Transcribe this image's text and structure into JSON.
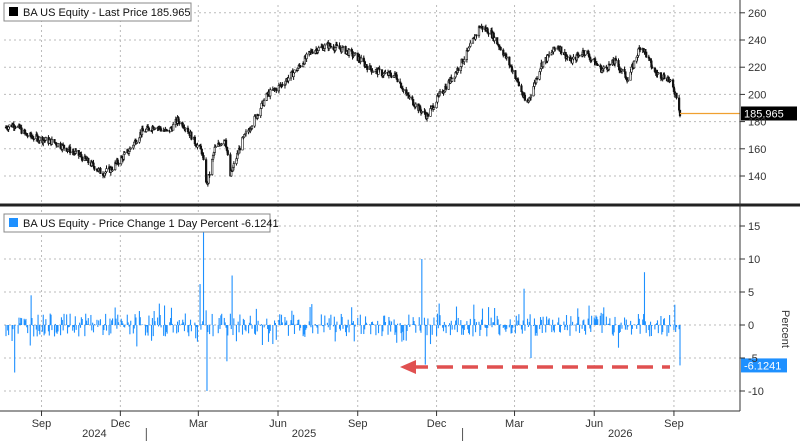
{
  "chart_data": [
    {
      "type": "candlestick",
      "legend": "BA US Equity - Last Price 185.965",
      "last_value_label": "185.965",
      "ylim": [
        118,
        265
      ],
      "yticks": [
        140,
        160,
        180,
        200,
        220,
        240,
        260
      ],
      "colors": {
        "price": "#111111",
        "last_line": "#f0a030",
        "label_bg": "#000000"
      },
      "anchor_points": [
        [
          "2024-07-22",
          176
        ],
        [
          "2024-08-01",
          178
        ],
        [
          "2024-08-15",
          170
        ],
        [
          "2024-09-01",
          167
        ],
        [
          "2024-09-15",
          165
        ],
        [
          "2024-10-01",
          160
        ],
        [
          "2024-10-15",
          155
        ],
        [
          "2024-11-01",
          147
        ],
        [
          "2024-11-10",
          142
        ],
        [
          "2024-11-20",
          145
        ],
        [
          "2024-12-10",
          158
        ],
        [
          "2024-12-25",
          172
        ],
        [
          "2025-01-10",
          177
        ],
        [
          "2025-01-25",
          172
        ],
        [
          "2025-02-05",
          181
        ],
        [
          "2025-02-15",
          176
        ],
        [
          "2025-02-25",
          165
        ],
        [
          "2025-03-05",
          158
        ],
        [
          "2025-03-11",
          133
        ],
        [
          "2025-03-20",
          160
        ],
        [
          "2025-04-01",
          168
        ],
        [
          "2025-04-07",
          140
        ],
        [
          "2025-04-20",
          165
        ],
        [
          "2025-05-05",
          182
        ],
        [
          "2025-05-20",
          200
        ],
        [
          "2025-06-05",
          207
        ],
        [
          "2025-06-25",
          220
        ],
        [
          "2025-07-10",
          232
        ],
        [
          "2025-07-29",
          236
        ],
        [
          "2025-08-15",
          233
        ],
        [
          "2025-08-30",
          228
        ],
        [
          "2025-09-15",
          219
        ],
        [
          "2025-10-01",
          215
        ],
        [
          "2025-10-15",
          214
        ],
        [
          "2025-10-27",
          200
        ],
        [
          "2025-11-10",
          190
        ],
        [
          "2025-11-20",
          184
        ],
        [
          "2025-12-05",
          200
        ],
        [
          "2025-12-20",
          213
        ],
        [
          "2026-01-05",
          230
        ],
        [
          "2026-01-20",
          250
        ],
        [
          "2026-02-01",
          246
        ],
        [
          "2026-02-15",
          232
        ],
        [
          "2026-03-01",
          215
        ],
        [
          "2026-03-15",
          192
        ],
        [
          "2026-04-01",
          222
        ],
        [
          "2026-04-20",
          236
        ],
        [
          "2026-05-05",
          224
        ],
        [
          "2026-05-20",
          232
        ],
        [
          "2026-06-10",
          218
        ],
        [
          "2026-06-25",
          224
        ],
        [
          "2026-07-10",
          211
        ],
        [
          "2026-07-25",
          237
        ],
        [
          "2026-08-10",
          216
        ],
        [
          "2026-08-25",
          212
        ],
        [
          "2026-09-05",
          198
        ],
        [
          "2026-09-08",
          186
        ]
      ]
    },
    {
      "type": "bar",
      "legend": "BA US Equity - Price Change 1 Day Percent -6.1241",
      "last_value_label": "-6.1241",
      "ylabel": "Percent",
      "ylim": [
        -13,
        17
      ],
      "yticks": [
        -10,
        -5,
        0,
        5,
        10,
        15
      ],
      "colors": {
        "bar": "#1e90ff",
        "label_bg": "#1e90ff",
        "arrow": "#e05050"
      },
      "spikes": [
        [
          "2024-08-01",
          -7.2
        ],
        [
          "2024-08-20",
          4.5
        ],
        [
          "2025-03-11",
          -10.0
        ],
        [
          "2025-03-07",
          14.5
        ],
        [
          "2025-03-03",
          6.2
        ],
        [
          "2025-04-09",
          7.5
        ],
        [
          "2025-04-03",
          -5.5
        ],
        [
          "2025-11-14",
          10.0
        ],
        [
          "2025-11-18",
          -6.0
        ],
        [
          "2026-03-12",
          5.5
        ],
        [
          "2026-03-20",
          -5.0
        ],
        [
          "2026-07-29",
          8.0
        ],
        [
          "2026-09-08",
          -6.1241
        ]
      ]
    }
  ],
  "x_axis": {
    "start": "2024-07-22",
    "end": "2026-09-08",
    "month_ticks": [
      [
        "2024-09-01",
        "Sep"
      ],
      [
        "2024-12-01",
        "Dec"
      ],
      [
        "2025-03-01",
        "Mar"
      ],
      [
        "2025-06-01",
        "Jun"
      ],
      [
        "2025-09-01",
        "Sep"
      ],
      [
        "2025-12-01",
        "Dec"
      ],
      [
        "2026-03-01",
        "Mar"
      ],
      [
        "2026-06-01",
        "Jun"
      ],
      [
        "2026-09-01",
        "Sep"
      ]
    ],
    "year_labels": [
      [
        "2024-11-01",
        "2024"
      ],
      [
        "2025-07-01",
        "2025"
      ],
      [
        "2026-07-01",
        "2026"
      ]
    ]
  }
}
